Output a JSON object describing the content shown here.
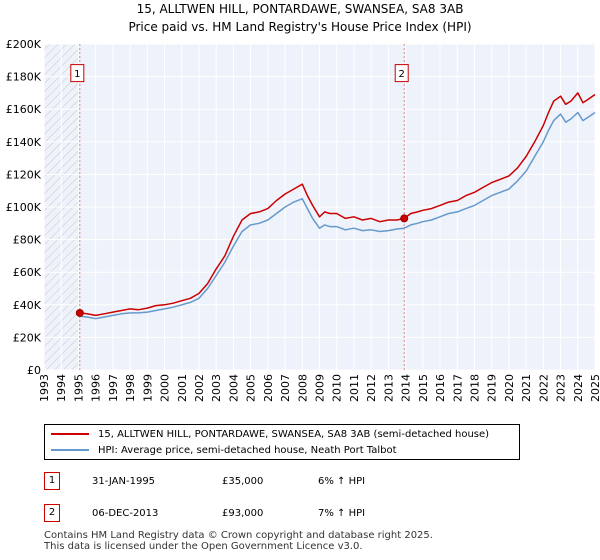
{
  "title_line1": "15, ALLTWEN HILL, PONTARDAWE, SWANSEA, SA8 3AB",
  "title_line2": "Price paid vs. HM Land Registry's House Price Index (HPI)",
  "chart_data": {
    "type": "line",
    "x_range": [
      1993.0,
      2025.0
    ],
    "ylim": [
      0,
      200000
    ],
    "yticks": [
      0,
      20000,
      40000,
      60000,
      80000,
      100000,
      120000,
      140000,
      160000,
      180000,
      200000
    ],
    "ytick_labels": [
      "£0",
      "£20K",
      "£40K",
      "£60K",
      "£80K",
      "£100K",
      "£120K",
      "£140K",
      "£160K",
      "£180K",
      "£200K"
    ],
    "xticks": [
      1993,
      1994,
      1995,
      1996,
      1997,
      1998,
      1999,
      2000,
      2001,
      2002,
      2003,
      2004,
      2005,
      2006,
      2007,
      2008,
      2009,
      2010,
      2011,
      2012,
      2013,
      2014,
      2015,
      2016,
      2017,
      2018,
      2019,
      2020,
      2021,
      2022,
      2023,
      2024,
      2025
    ],
    "xtick_labels": [
      "1993",
      "1994",
      "1995",
      "1996",
      "1997",
      "1998",
      "1999",
      "2000",
      "2001",
      "2002",
      "2003",
      "2004",
      "2005",
      "2006",
      "2007",
      "2008",
      "2009",
      "2010",
      "2011",
      "2012",
      "2013",
      "2014",
      "2015",
      "2016",
      "2017",
      "2018",
      "2019",
      "2020",
      "2021",
      "2022",
      "2023",
      "2024",
      "2025"
    ],
    "grid": true,
    "hatched_before": 1995.08,
    "series": [
      {
        "name": "15, ALLTWEN HILL, PONTARDAWE, SWANSEA, SA8 3AB (semi-detached house)",
        "color": "#cc0000",
        "x": [
          1995.08,
          1995.5,
          1996.0,
          1996.5,
          1997.0,
          1997.5,
          1998.0,
          1998.5,
          1999.0,
          1999.5,
          2000.0,
          2000.5,
          2001.0,
          2001.5,
          2002.0,
          2002.5,
          2003.0,
          2003.5,
          2004.0,
          2004.5,
          2005.0,
          2005.5,
          2006.0,
          2006.5,
          2007.0,
          2007.5,
          2008.0,
          2008.3,
          2008.6,
          2009.0,
          2009.3,
          2009.6,
          2010.0,
          2010.5,
          2011.0,
          2011.5,
          2012.0,
          2012.5,
          2013.0,
          2013.5,
          2013.92,
          2014.3,
          2014.7,
          2015.0,
          2015.5,
          2016.0,
          2016.5,
          2017.0,
          2017.5,
          2018.0,
          2018.5,
          2019.0,
          2019.5,
          2020.0,
          2020.5,
          2021.0,
          2021.5,
          2022.0,
          2022.3,
          2022.6,
          2023.0,
          2023.3,
          2023.6,
          2024.0,
          2024.3,
          2024.6,
          2025.0
        ],
        "values": [
          35000,
          34500,
          33500,
          34500,
          35500,
          36500,
          37500,
          37000,
          38000,
          39500,
          40000,
          41000,
          42500,
          44000,
          47000,
          53000,
          62000,
          70000,
          82000,
          92000,
          96000,
          97000,
          99000,
          104000,
          108000,
          111000,
          114000,
          107000,
          101000,
          94000,
          97000,
          96000,
          96000,
          93000,
          94000,
          92000,
          93000,
          91000,
          92000,
          92000,
          93000,
          96000,
          97000,
          98000,
          99000,
          101000,
          103000,
          104000,
          107000,
          109000,
          112000,
          115000,
          117000,
          119000,
          124000,
          131000,
          140000,
          150000,
          158000,
          165000,
          168000,
          163000,
          165000,
          170000,
          164000,
          166000,
          169000
        ]
      },
      {
        "name": "HPI: Average price, semi-detached house, Neath Port Talbot",
        "color": "#6699cc",
        "x": [
          1995.08,
          1995.5,
          1996.0,
          1996.5,
          1997.0,
          1997.5,
          1998.0,
          1998.5,
          1999.0,
          1999.5,
          2000.0,
          2000.5,
          2001.0,
          2001.5,
          2002.0,
          2002.5,
          2003.0,
          2003.5,
          2004.0,
          2004.5,
          2005.0,
          2005.5,
          2006.0,
          2006.5,
          2007.0,
          2007.5,
          2008.0,
          2008.3,
          2008.6,
          2009.0,
          2009.3,
          2009.6,
          2010.0,
          2010.5,
          2011.0,
          2011.5,
          2012.0,
          2012.5,
          2013.0,
          2013.5,
          2013.92,
          2014.3,
          2014.7,
          2015.0,
          2015.5,
          2016.0,
          2016.5,
          2017.0,
          2017.5,
          2018.0,
          2018.5,
          2019.0,
          2019.5,
          2020.0,
          2020.5,
          2021.0,
          2021.5,
          2022.0,
          2022.3,
          2022.6,
          2023.0,
          2023.3,
          2023.6,
          2024.0,
          2024.3,
          2024.6,
          2025.0
        ],
        "values": [
          33000,
          32500,
          31500,
          32500,
          33500,
          34500,
          35000,
          35000,
          35500,
          36500,
          37500,
          38500,
          40000,
          41500,
          44000,
          50000,
          58000,
          66000,
          76000,
          85000,
          89000,
          90000,
          92000,
          96000,
          100000,
          103000,
          105000,
          99000,
          93000,
          87000,
          89000,
          88000,
          88000,
          86000,
          87000,
          85500,
          86000,
          85000,
          85500,
          86500,
          87000,
          89000,
          90000,
          91000,
          92000,
          94000,
          96000,
          97000,
          99000,
          101000,
          104000,
          107000,
          109000,
          111000,
          116000,
          122000,
          131000,
          140000,
          147000,
          153000,
          157000,
          152000,
          154000,
          158000,
          153000,
          155000,
          158000
        ]
      }
    ],
    "annotations": [
      {
        "label": "1",
        "x": 1995.08,
        "value": 35000
      },
      {
        "label": "2",
        "x": 2013.92,
        "value": 93000
      }
    ]
  },
  "legend": {
    "entries": [
      {
        "label": "15, ALLTWEN HILL, PONTARDAWE, SWANSEA, SA8 3AB (semi-detached house)",
        "color": "#cc0000"
      },
      {
        "label": "HPI: Average price, semi-detached house, Neath Port Talbot",
        "color": "#6699cc"
      }
    ]
  },
  "transactions": [
    {
      "id": "1",
      "date": "31-JAN-1995",
      "price": "£35,000",
      "hpi": "6% ↑ HPI"
    },
    {
      "id": "2",
      "date": "06-DEC-2013",
      "price": "£93,000",
      "hpi": "7% ↑ HPI"
    }
  ],
  "footer": {
    "line1": "Contains HM Land Registry data © Crown copyright and database right 2025.",
    "line2": "This data is licensed under the Open Government Licence v3.0."
  }
}
